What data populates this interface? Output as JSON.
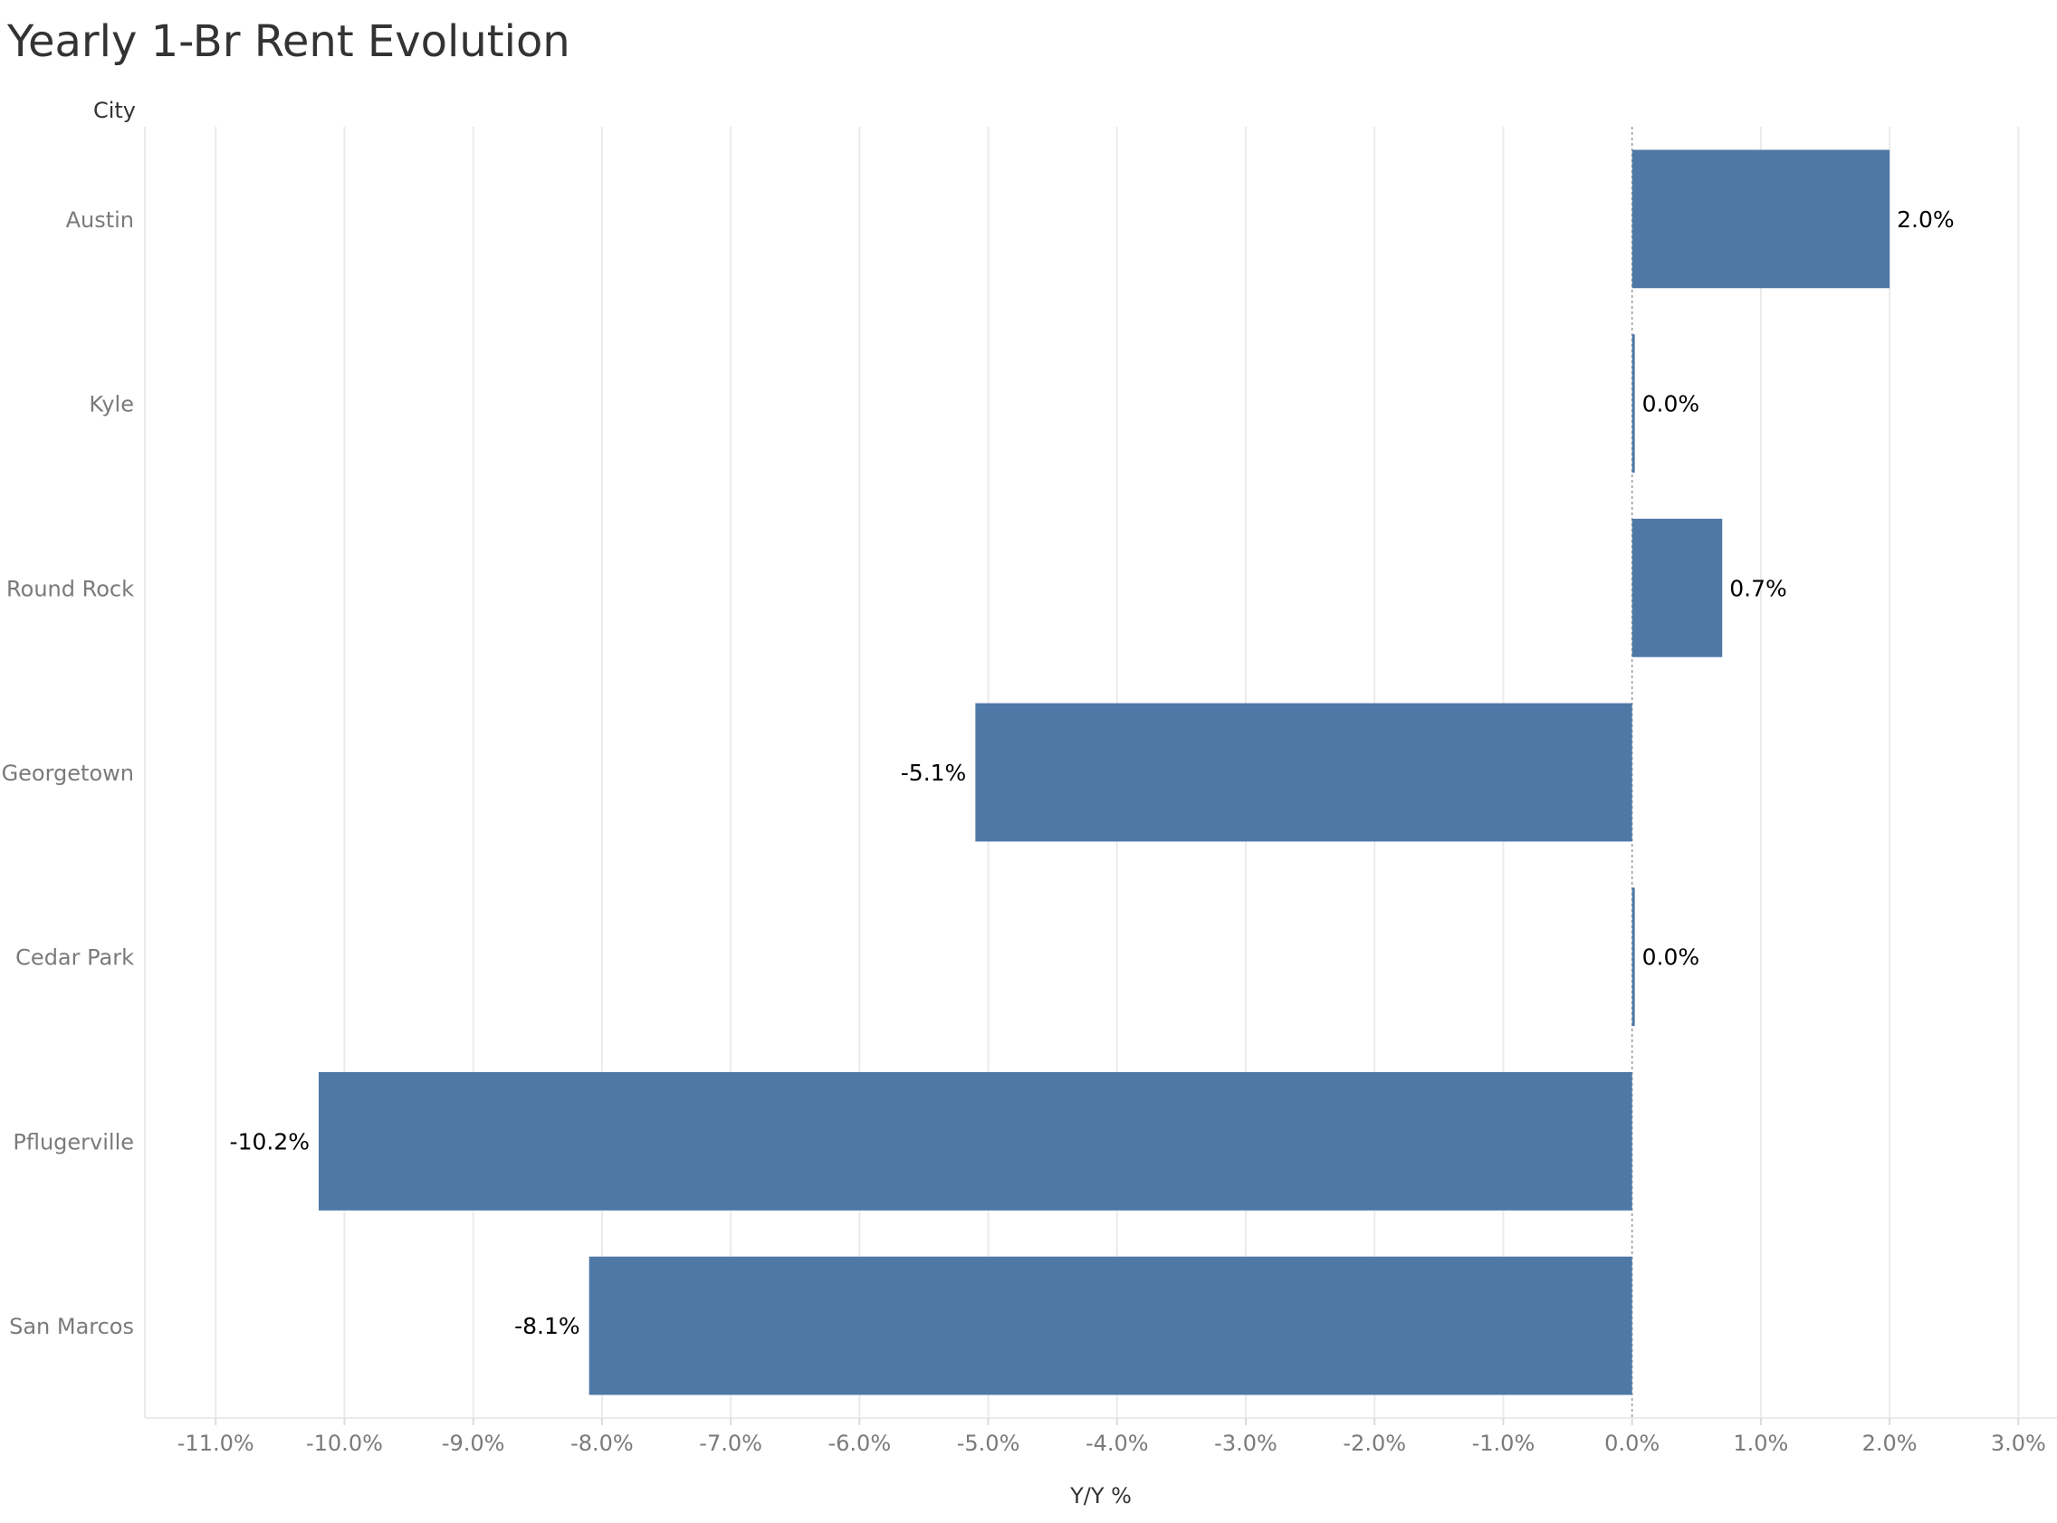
{
  "chart_data": {
    "type": "bar",
    "orientation": "horizontal",
    "title": "Yearly 1-Br Rent Evolution",
    "ylabel": "City",
    "xlabel": "Y/Y %",
    "categories": [
      "Austin",
      "Kyle",
      "Round Rock",
      "Georgetown",
      "Cedar Park",
      "Pflugerville",
      "San Marcos"
    ],
    "values": [
      2.0,
      0.02,
      0.7,
      -5.1,
      0.02,
      -10.2,
      -8.1
    ],
    "data_labels": [
      "2.0%",
      "0.0%",
      "0.7%",
      "-5.1%",
      "0.0%",
      "-10.2%",
      "-8.1%"
    ],
    "xlim": [
      -11.55,
      3.3
    ],
    "ticks": [
      -11,
      -10,
      -9,
      -8,
      -7,
      -6,
      -5,
      -4,
      -3,
      -2,
      -1,
      0,
      1,
      2,
      3
    ],
    "tick_labels": [
      "-11.0%",
      "-10.0%",
      "-9.0%",
      "-8.0%",
      "-7.0%",
      "-6.0%",
      "-5.0%",
      "-4.0%",
      "-3.0%",
      "-2.0%",
      "-1.0%",
      "0.0%",
      "1.0%",
      "2.0%",
      "3.0%"
    ],
    "grid": true,
    "colors": {
      "bar": "#4e79a7",
      "grid": "#ebebeb",
      "zero_line": "#9a9a9a"
    }
  }
}
